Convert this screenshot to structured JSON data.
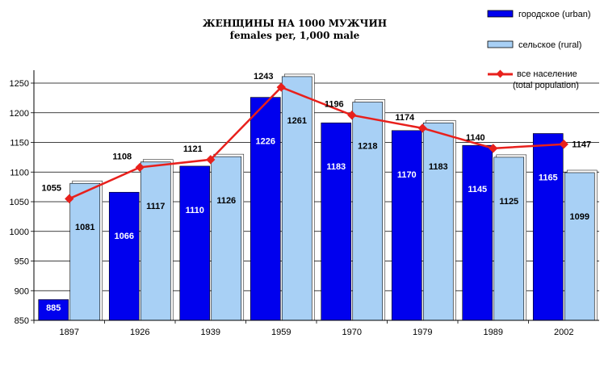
{
  "chart_data": {
    "type": "bar",
    "title": "ЖЕНЩИНЫ НА 1000 МУЖЧИН",
    "subtitle": "females per, 1,000 male",
    "categories": [
      "1897",
      "1926",
      "1939",
      "1959",
      "1970",
      "1979",
      "1989",
      "2002"
    ],
    "series": [
      {
        "name": "городское (urban)",
        "kind": "bar",
        "color": "#0000ee",
        "values": [
          885,
          1066,
          1110,
          1226,
          1183,
          1170,
          1145,
          1165
        ]
      },
      {
        "name": "сельское (rural)",
        "kind": "bar",
        "color": "#a8d0f5",
        "values": [
          1081,
          1117,
          1126,
          1261,
          1218,
          1183,
          1125,
          1099
        ]
      }
    ],
    "line_series": {
      "name_line1": "все население",
      "name_line2": "(total population)",
      "color": "#e8201c",
      "values": [
        1055,
        1108,
        1121,
        1243,
        1196,
        1174,
        1140,
        1147
      ]
    },
    "ylim": [
      850,
      1250
    ],
    "yticks": [
      850,
      900,
      950,
      1000,
      1050,
      1100,
      1150,
      1200,
      1250
    ],
    "grid": true,
    "legend_position": "top-right"
  }
}
